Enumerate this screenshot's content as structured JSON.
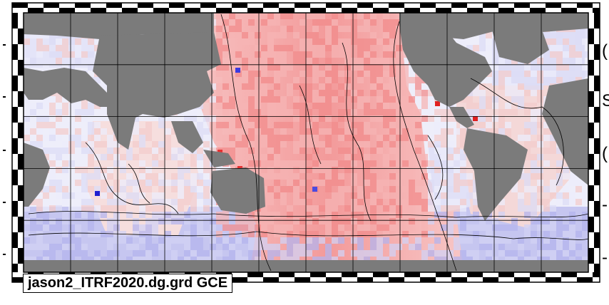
{
  "map": {
    "label": "jason2_ITRF2020.dg.grd GCE",
    "colors": {
      "land": "#7b7b7b",
      "ocean_positive": "#f08080",
      "ocean_negative": "#8a8ae8",
      "frame_black": "#000000",
      "frame_white": "#ffffff",
      "contour": "#000000",
      "gridline": "#000000"
    },
    "right_edge_glyphs": [
      "(",
      "S",
      "(",
      "-",
      "-"
    ],
    "legend": "none"
  }
}
